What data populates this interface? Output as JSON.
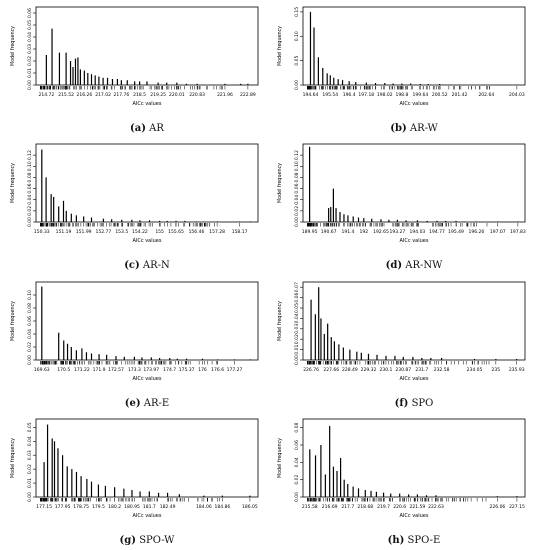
{
  "figure": {
    "charts": [
      {
        "caption_label": "(a)",
        "caption_name": "AR",
        "chart_data": {
          "type": "bar",
          "xlabel": "AICc values",
          "ylabel": "Model frequency",
          "xlim": [
            214.3,
            223.3
          ],
          "ylim": [
            0,
            0.065
          ],
          "xticks": [
            214.72,
            215.52,
            216.26,
            217.02,
            217.76,
            218.5,
            219.25,
            220.01,
            220.83,
            221.96,
            222.89
          ],
          "yticks": [
            0.0,
            0.01,
            0.02,
            0.03,
            0.04,
            0.05,
            0.06
          ],
          "x": [
            214.72,
            214.95,
            215.25,
            215.52,
            215.7,
            215.8,
            215.9,
            216.0,
            216.1,
            216.26,
            216.4,
            216.55,
            216.7,
            216.85,
            217.02,
            217.2,
            217.4,
            217.6,
            217.76,
            218.0,
            218.3,
            218.5,
            218.8,
            219.25,
            219.6,
            220.01,
            220.4,
            220.83,
            221.96,
            222.6,
            222.89
          ],
          "y": [
            0.025,
            0.047,
            0.027,
            0.027,
            0.02,
            0.015,
            0.022,
            0.023,
            0.013,
            0.012,
            0.01,
            0.009,
            0.008,
            0.007,
            0.006,
            0.006,
            0.005,
            0.005,
            0.004,
            0.004,
            0.003,
            0.003,
            0.003,
            0.002,
            0.002,
            0.002,
            0.001,
            0.001,
            0.001,
            0.001,
            0.001
          ]
        }
      },
      {
        "caption_label": "(b)",
        "caption_name": "AR-W",
        "chart_data": {
          "type": "bar",
          "xlabel": "AICc values",
          "ylabel": "Model frequency",
          "xlim": [
            194.3,
            204.4
          ],
          "ylim": [
            0,
            0.16
          ],
          "xticks": [
            194.64,
            195.54,
            196.4,
            197.18,
            198.02,
            198.8,
            199.64,
            200.52,
            201.42,
            202.64,
            204.03
          ],
          "yticks": [
            0.0,
            0.05,
            0.1,
            0.15
          ],
          "x": [
            194.64,
            194.8,
            195.0,
            195.2,
            195.4,
            195.54,
            195.7,
            195.9,
            196.1,
            196.4,
            196.7,
            197.18,
            197.6,
            198.02,
            198.4,
            198.8,
            199.2,
            199.64,
            200.0,
            200.52,
            201.0,
            201.42,
            202.64,
            204.03
          ],
          "y": [
            0.15,
            0.118,
            0.057,
            0.035,
            0.024,
            0.02,
            0.015,
            0.012,
            0.01,
            0.008,
            0.006,
            0.005,
            0.004,
            0.004,
            0.003,
            0.003,
            0.003,
            0.002,
            0.002,
            0.002,
            0.001,
            0.001,
            0.001,
            0.001
          ]
        }
      },
      {
        "caption_label": "(c)",
        "caption_name": "AR-N",
        "chart_data": {
          "type": "bar",
          "xlabel": "AICc values",
          "ylabel": "Model frequency",
          "xlim": [
            150.1,
            158.9
          ],
          "ylim": [
            0,
            0.14
          ],
          "xticks": [
            150.33,
            151.19,
            151.99,
            152.77,
            153.5,
            154.22,
            155,
            155.65,
            156.46,
            157.28,
            158.17
          ],
          "yticks": [
            0.0,
            0.02,
            0.04,
            0.06,
            0.08,
            0.1,
            0.12
          ],
          "x": [
            150.33,
            150.5,
            150.7,
            150.8,
            151.0,
            151.19,
            151.3,
            151.5,
            151.7,
            151.99,
            152.3,
            152.77,
            153.1,
            153.5,
            153.9,
            154.22,
            154.6,
            155.0,
            155.3,
            155.65,
            156.0,
            156.46,
            157.28,
            158.17,
            158.6
          ],
          "y": [
            0.13,
            0.08,
            0.05,
            0.045,
            0.028,
            0.038,
            0.02,
            0.015,
            0.012,
            0.01,
            0.008,
            0.006,
            0.005,
            0.004,
            0.004,
            0.003,
            0.003,
            0.002,
            0.002,
            0.002,
            0.002,
            0.001,
            0.001,
            0.001,
            0.001
          ]
        }
      },
      {
        "caption_label": "(d)",
        "caption_name": "AR-NW",
        "chart_data": {
          "type": "bar",
          "xlabel": "AICc values",
          "ylabel": "Model frequency",
          "xlim": [
            189.7,
            198.1
          ],
          "ylim": [
            0,
            0.14
          ],
          "xticks": [
            189.95,
            190.67,
            191.4,
            192,
            192.65,
            193.27,
            194.03,
            194.77,
            195.49,
            196.26,
            197.07,
            197.83
          ],
          "yticks": [
            0.0,
            0.02,
            0.04,
            0.06,
            0.08,
            0.1,
            0.12
          ],
          "x": [
            189.95,
            190.67,
            190.75,
            190.85,
            190.95,
            191.1,
            191.25,
            191.4,
            191.6,
            191.8,
            192.0,
            192.3,
            192.65,
            192.95,
            193.27,
            193.6,
            194.03,
            194.4,
            194.77,
            195.1,
            195.49,
            195.8,
            196.26,
            197.07,
            197.83
          ],
          "y": [
            0.135,
            0.025,
            0.027,
            0.06,
            0.025,
            0.018,
            0.014,
            0.012,
            0.01,
            0.008,
            0.007,
            0.006,
            0.005,
            0.004,
            0.004,
            0.003,
            0.003,
            0.002,
            0.002,
            0.002,
            0.002,
            0.001,
            0.001,
            0.001,
            0.001
          ]
        }
      },
      {
        "caption_label": "(e)",
        "caption_name": "AR-E",
        "chart_data": {
          "type": "bar",
          "xlabel": "AICc values",
          "ylabel": "Model frequency",
          "xlim": [
            169.4,
            178.2
          ],
          "ylim": [
            0,
            0.12
          ],
          "xticks": [
            169.63,
            170.5,
            171.22,
            171.9,
            172.57,
            173.3,
            173.97,
            174.7,
            175.37,
            176,
            176.6,
            177.27
          ],
          "yticks": [
            0.0,
            0.02,
            0.04,
            0.06,
            0.08,
            0.1
          ],
          "x": [
            169.63,
            170.3,
            170.5,
            170.65,
            170.8,
            171.0,
            171.22,
            171.4,
            171.6,
            171.9,
            172.2,
            172.57,
            172.9,
            173.3,
            173.6,
            173.97,
            174.3,
            174.7,
            175.0,
            175.37,
            176.0,
            176.6,
            177.27,
            177.9
          ],
          "y": [
            0.113,
            0.042,
            0.03,
            0.025,
            0.02,
            0.015,
            0.018,
            0.012,
            0.01,
            0.009,
            0.008,
            0.006,
            0.005,
            0.005,
            0.004,
            0.004,
            0.003,
            0.003,
            0.002,
            0.002,
            0.002,
            0.001,
            0.001,
            0.001
          ]
        }
      },
      {
        "caption_label": "(f)",
        "caption_name": "SPO",
        "chart_data": {
          "type": "bar",
          "xlabel": "AICc values",
          "ylabel": "Model frequency",
          "xlim": [
            226.4,
            236.3
          ],
          "ylim": [
            0,
            0.075
          ],
          "xticks": [
            226.76,
            227.66,
            228.49,
            229.32,
            230.1,
            230.87,
            231.7,
            232.58,
            234.05,
            235,
            235.93
          ],
          "yticks": [
            0.0,
            0.01,
            0.02,
            0.03,
            0.04,
            0.05,
            0.06,
            0.07
          ],
          "x": [
            226.76,
            226.95,
            227.1,
            227.2,
            227.35,
            227.5,
            227.66,
            227.8,
            228.0,
            228.2,
            228.49,
            228.8,
            229.0,
            229.32,
            229.7,
            230.1,
            230.5,
            230.87,
            231.3,
            231.7,
            232.1,
            232.58,
            234.05,
            235.0,
            235.93
          ],
          "y": [
            0.058,
            0.044,
            0.07,
            0.04,
            0.025,
            0.035,
            0.022,
            0.018,
            0.015,
            0.012,
            0.01,
            0.008,
            0.007,
            0.006,
            0.005,
            0.004,
            0.004,
            0.003,
            0.003,
            0.002,
            0.002,
            0.002,
            0.001,
            0.001,
            0.001
          ]
        }
      },
      {
        "caption_label": "(g)",
        "caption_name": "SPO-W",
        "chart_data": {
          "type": "bar",
          "xlabel": "AICc values",
          "ylabel": "Model frequency",
          "xlim": [
            176.8,
            186.4
          ],
          "ylim": [
            0,
            0.056
          ],
          "xticks": [
            177.15,
            177.95,
            178.75,
            179.5,
            180.2,
            180.95,
            181.7,
            182.49,
            184.06,
            184.86,
            186.05
          ],
          "yticks": [
            0.0,
            0.01,
            0.02,
            0.03,
            0.04,
            0.05
          ],
          "x": [
            177.15,
            177.3,
            177.5,
            177.6,
            177.75,
            177.95,
            178.15,
            178.35,
            178.55,
            178.75,
            179.0,
            179.2,
            179.5,
            179.8,
            180.2,
            180.6,
            180.95,
            181.3,
            181.7,
            182.1,
            182.49,
            183.0,
            184.06,
            184.86,
            186.05
          ],
          "y": [
            0.025,
            0.052,
            0.042,
            0.04,
            0.035,
            0.03,
            0.022,
            0.02,
            0.018,
            0.015,
            0.013,
            0.011,
            0.009,
            0.008,
            0.007,
            0.006,
            0.005,
            0.004,
            0.004,
            0.003,
            0.003,
            0.002,
            0.001,
            0.001,
            0.001
          ]
        }
      },
      {
        "caption_label": "(h)",
        "caption_name": "SPO-E",
        "chart_data": {
          "type": "bar",
          "xlabel": "AICc values",
          "ylabel": "Model frequency",
          "xlim": [
            215.2,
            227.6
          ],
          "ylim": [
            0,
            0.09
          ],
          "xticks": [
            215.58,
            216.69,
            217.7,
            218.68,
            219.7,
            220.6,
            221.59,
            222.63,
            226.06,
            227.15
          ],
          "yticks": [
            0.0,
            0.02,
            0.04,
            0.06,
            0.08
          ],
          "x": [
            215.58,
            215.9,
            216.2,
            216.45,
            216.69,
            216.9,
            217.1,
            217.3,
            217.5,
            217.7,
            218.0,
            218.3,
            218.68,
            219.0,
            219.3,
            219.7,
            220.1,
            220.6,
            221.1,
            221.59,
            222.1,
            222.63,
            226.06,
            227.15
          ],
          "y": [
            0.055,
            0.048,
            0.06,
            0.026,
            0.082,
            0.035,
            0.03,
            0.045,
            0.02,
            0.015,
            0.012,
            0.01,
            0.008,
            0.007,
            0.006,
            0.005,
            0.004,
            0.004,
            0.003,
            0.003,
            0.002,
            0.002,
            0.001,
            0.001
          ]
        }
      }
    ]
  }
}
